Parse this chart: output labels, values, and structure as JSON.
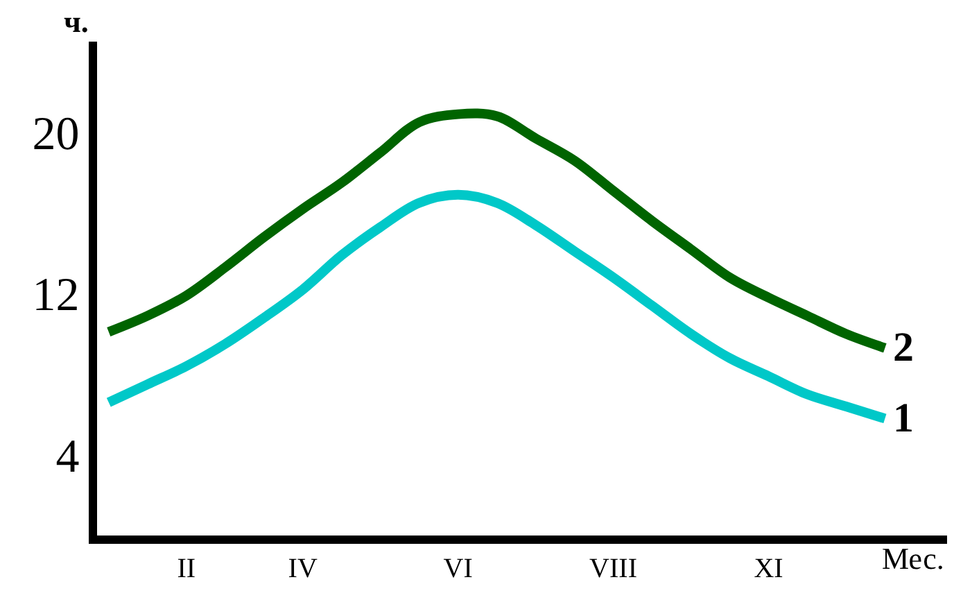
{
  "chart_data": {
    "type": "line",
    "ylabel": "ч.",
    "xlabel": "Мес.",
    "categories": [
      null,
      null,
      "II",
      null,
      null,
      "IV",
      null,
      null,
      null,
      "VI",
      null,
      null,
      null,
      "VIII",
      null,
      null,
      null,
      "XI",
      null,
      null,
      null
    ],
    "ylim": [
      0,
      24.5
    ],
    "yticks": [
      4,
      12,
      20
    ],
    "legend": false,
    "marker": "none",
    "line_style": "solid",
    "series": [
      {
        "name": "2",
        "color": "#006400",
        "values": [
          10.1,
          10.9,
          11.9,
          13.3,
          14.8,
          16.2,
          17.5,
          19.0,
          20.5,
          20.9,
          20.8,
          19.7,
          18.6,
          17.1,
          15.6,
          14.2,
          12.8,
          11.8,
          10.9,
          10.0,
          9.3
        ]
      },
      {
        "name": "1",
        "color": "#00c8c8",
        "values": [
          6.6,
          7.5,
          8.4,
          9.5,
          10.8,
          12.2,
          13.9,
          15.3,
          16.5,
          16.9,
          16.5,
          15.4,
          14.1,
          12.8,
          11.4,
          10.0,
          8.8,
          7.9,
          7.0,
          6.4,
          5.8
        ]
      }
    ]
  }
}
